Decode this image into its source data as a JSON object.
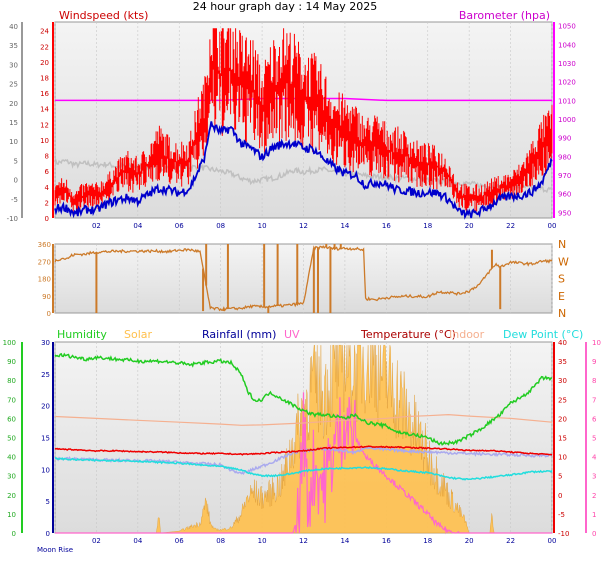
{
  "title": "24 hour graph day : 14 May 2025",
  "x_ticks": [
    "02",
    "04",
    "06",
    "08",
    "10",
    "12",
    "14",
    "16",
    "18",
    "20",
    "22",
    "00"
  ],
  "moon_label": "Moon Rise",
  "colors": {
    "windspeed": "#ff0000",
    "windavg": "#0000cc",
    "barometer": "#ff00ff",
    "gray": "#c0c0c0",
    "direction": "#cc7a29",
    "humidity": "#22cc22",
    "solar": "#ffc04d",
    "rainfall": "#000099",
    "uv": "#ff66cc",
    "temperature": "#ee0000",
    "indoor": "#f5b090",
    "dewpoint": "#22dddd",
    "lilac": "#aaaaee"
  },
  "chart_data": [
    {
      "type": "line",
      "panel": "wind_baro",
      "left_axis_label": "Windspeed (kts)",
      "right_axis_label": "Barometer (hpa)",
      "left_ticks": [
        "24",
        "22",
        "20",
        "18",
        "16",
        "14",
        "12",
        "10",
        "8",
        "6",
        "4",
        "2",
        "0"
      ],
      "left_outer_ticks": [
        "40",
        "35",
        "30",
        "25",
        "20",
        "15",
        "10",
        "5",
        "0",
        "-5",
        "-10"
      ],
      "right_ticks": [
        "1050",
        "1040",
        "1030",
        "1020",
        "1010",
        "1000",
        "990",
        "980",
        "970",
        "960",
        "950"
      ],
      "ylim_kts": [
        0,
        24.6
      ],
      "ylim_hpa": [
        947,
        1052
      ],
      "series": [
        {
          "key": "gust",
          "x": [
            0,
            0.5,
            1,
            1.5,
            2,
            2.5,
            3,
            3.5,
            4,
            4.5,
            5,
            5.5,
            6,
            6.5,
            7,
            7.25,
            7.5,
            8,
            8.5,
            9,
            9.5,
            10,
            10.5,
            11,
            11.5,
            12,
            12.5,
            13,
            13.5,
            14,
            14.5,
            15,
            15.5,
            16,
            16.5,
            17,
            17.5,
            18,
            18.5,
            19,
            19.5,
            20,
            20.5,
            21,
            21.5,
            22,
            22.5,
            23,
            23.5,
            24
          ],
          "y": [
            3.2,
            3.5,
            2.0,
            3.0,
            2.8,
            3.8,
            5.2,
            6.2,
            5.5,
            6.8,
            8.6,
            7.5,
            7.0,
            7.5,
            11.8,
            13.0,
            19.5,
            18.5,
            19.0,
            17.0,
            16.8,
            13.8,
            16.5,
            18.0,
            17.0,
            15.4,
            15.0,
            13.5,
            11.6,
            11.2,
            10.4,
            9.2,
            9.6,
            8.7,
            8.3,
            7.9,
            7.0,
            6.8,
            6.5,
            5.5,
            3.0,
            2.5,
            2.6,
            3.2,
            3.8,
            4.2,
            5.1,
            7.0,
            9.1,
            10.4
          ]
        },
        {
          "key": "avg",
          "x": [
            0,
            0.5,
            1,
            1.5,
            2,
            2.5,
            3,
            3.5,
            4,
            4.5,
            5,
            5.5,
            6,
            6.5,
            7,
            7.25,
            7.5,
            8,
            8.5,
            9,
            9.5,
            10,
            10.5,
            11,
            11.5,
            12,
            12.5,
            13,
            13.5,
            14,
            14.5,
            15,
            15.5,
            16,
            16.5,
            17,
            17.5,
            18,
            18.5,
            19,
            19.5,
            20,
            20.5,
            21,
            21.5,
            22,
            22.5,
            23,
            23.5,
            24
          ],
          "y": [
            1.2,
            1.4,
            0.5,
            1.1,
            1.0,
            1.8,
            2.3,
            2.6,
            2.2,
            3.0,
            3.8,
            3.6,
            3.2,
            3.8,
            6.5,
            8.0,
            12.0,
            11.0,
            11.5,
            9.5,
            8.9,
            7.8,
            9.0,
            9.5,
            9.6,
            9.0,
            8.8,
            7.6,
            6.4,
            5.7,
            5.5,
            4.2,
            4.6,
            4.3,
            3.6,
            3.5,
            3.2,
            3.3,
            3.2,
            2.4,
            0.8,
            0.4,
            0.8,
            1.6,
            2.4,
            2.8,
            2.9,
            3.3,
            4.5,
            7.5
          ]
        },
        {
          "key": "baro",
          "x": [
            0,
            2,
            4,
            6,
            8,
            10,
            12,
            13,
            14,
            16,
            18,
            20,
            22,
            24
          ],
          "y": [
            1010,
            1010,
            1010,
            1010,
            1010,
            1011,
            1011,
            1011,
            1011,
            1010,
            1010,
            1010,
            1010,
            1010
          ]
        },
        {
          "key": "gray",
          "x": [
            0,
            0.5,
            1,
            1.5,
            2,
            2.5,
            3,
            4,
            5,
            6,
            7,
            8,
            8.5,
            9,
            9.5,
            10,
            10.5,
            11,
            11.5,
            12,
            12.5,
            13,
            13.5,
            14,
            14.5,
            15,
            16,
            17,
            18,
            19,
            20,
            21,
            22,
            23,
            24
          ],
          "y": [
            7,
            7.3,
            6.8,
            7.0,
            6.8,
            6.9,
            6.6,
            6.6,
            6.4,
            6.6,
            6.5,
            6.0,
            5.7,
            5.1,
            4.7,
            4.9,
            5.1,
            5.5,
            6.1,
            5.9,
            6.1,
            6.2,
            5.9,
            5.7,
            5.6,
            5.4,
            5.2,
            5.1,
            4.9,
            4.6,
            4.4,
            4.0,
            4.0,
            3.9,
            3.6
          ]
        }
      ]
    },
    {
      "type": "line",
      "panel": "direction",
      "left_ticks": [
        "360",
        "270",
        "180",
        "90",
        "0"
      ],
      "right_ticks": [
        "N",
        "W",
        "S",
        "E",
        "N"
      ],
      "ylim_deg": [
        0,
        360
      ],
      "series": [
        {
          "key": "dir",
          "x": [
            0,
            0.3,
            0.6,
            0.8,
            1,
            1.5,
            2,
            3,
            4,
            5,
            5.5,
            6,
            6.5,
            7,
            7.5,
            8,
            8.5,
            9,
            9.5,
            10,
            11,
            12,
            12.5,
            13,
            13.5,
            14,
            14.5,
            14.9,
            15,
            15.5,
            16,
            17,
            18,
            18.5,
            19,
            19.5,
            20,
            20.5,
            21,
            21.3,
            21.5,
            22,
            22.5,
            23,
            23.5,
            24
          ],
          "y": [
            272,
            285,
            283,
            300,
            305,
            308,
            318,
            322,
            323,
            323,
            320,
            328,
            330,
            320,
            25,
            20,
            22,
            25,
            35,
            32,
            38,
            50,
            338,
            345,
            335,
            338,
            335,
            330,
            75,
            70,
            80,
            88,
            85,
            110,
            108,
            100,
            115,
            150,
            220,
            255,
            240,
            265,
            260,
            255,
            270,
            272
          ]
        }
      ],
      "spikes": [
        {
          "x": 2.0,
          "to": 0
        },
        {
          "x": 7.15,
          "to": 10
        },
        {
          "x": 7.3,
          "to": 360
        },
        {
          "x": 8.15,
          "to": 10
        },
        {
          "x": 8.35,
          "to": 360
        },
        {
          "x": 10.1,
          "to": 360
        },
        {
          "x": 10.3,
          "to": 0
        },
        {
          "x": 10.75,
          "to": 360
        },
        {
          "x": 11.7,
          "to": 360
        },
        {
          "x": 12.5,
          "to": 0
        },
        {
          "x": 12.7,
          "to": 0
        },
        {
          "x": 13.1,
          "to": 360
        },
        {
          "x": 13.3,
          "to": 0
        },
        {
          "x": 13.5,
          "to": 360
        },
        {
          "x": 13.8,
          "to": 360
        },
        {
          "x": 21.1,
          "to": 330
        },
        {
          "x": 21.5,
          "to": 20
        }
      ]
    },
    {
      "type": "area",
      "panel": "multi",
      "legend": [
        "Humidity",
        "Solar",
        "Rainfall (mm)",
        "UV",
        "Temperature (°C)",
        "Indoor",
        "Dew Point (°C)"
      ],
      "humidity_ticks": [
        "100",
        "90",
        "80",
        "70",
        "60",
        "50",
        "40",
        "30",
        "20",
        "10",
        "0"
      ],
      "rain_ticks": [
        "30",
        "25",
        "20",
        "15",
        "10",
        "5",
        "0"
      ],
      "temp_ticks": [
        "40",
        "35",
        "30",
        "25",
        "20",
        "15",
        "10",
        "5",
        "0",
        "-5",
        "-10"
      ],
      "uv_ticks": [
        "10",
        "9",
        "8",
        "7",
        "6",
        "5",
        "4",
        "3",
        "2",
        "1",
        "0"
      ],
      "ylim_humidity": [
        0,
        100
      ],
      "ylim_temperature": [
        -10,
        40
      ],
      "ylim_uv": [
        0,
        10
      ],
      "series": [
        {
          "key": "hum",
          "x": [
            0,
            0.5,
            1,
            1.5,
            2,
            3,
            4,
            5,
            6,
            6.5,
            7,
            8,
            8.5,
            9,
            9.3,
            9.7,
            10,
            10.3,
            10.5,
            11,
            11.5,
            12,
            12.5,
            13,
            13.5,
            14,
            14.5,
            15,
            15.5,
            16,
            16.5,
            17,
            17.5,
            18,
            18.5,
            19,
            19.5,
            20,
            20.5,
            21,
            21.5,
            22,
            22.5,
            23,
            23.5,
            24
          ],
          "y": [
            93,
            93,
            92,
            91,
            92,
            91,
            90,
            90,
            89,
            88,
            89,
            90,
            89,
            83,
            74,
            69,
            70,
            73,
            73,
            70,
            67,
            64,
            62,
            62,
            61,
            60,
            62,
            58,
            57,
            56,
            53,
            52,
            51,
            50,
            47,
            47,
            48,
            51,
            54,
            58,
            62,
            68,
            71,
            75,
            81,
            81
          ]
        },
        {
          "key": "ind",
          "x": [
            0,
            2,
            4,
            6,
            8,
            9,
            10,
            12,
            14,
            16,
            17,
            18,
            19,
            20,
            22,
            24
          ],
          "y": [
            20.5,
            20,
            19.5,
            19,
            18.5,
            18.2,
            18.3,
            18.8,
            19.5,
            20,
            20.5,
            20.7,
            21,
            20.6,
            20,
            19
          ]
        },
        {
          "key": "temp",
          "x": [
            0,
            1,
            2,
            3,
            4,
            5,
            6,
            7,
            8,
            9,
            10,
            11,
            12,
            13,
            14,
            15,
            16,
            17,
            18,
            19,
            20,
            21,
            22,
            23,
            24
          ],
          "y": [
            12,
            11.8,
            11.5,
            11.5,
            11.3,
            11.2,
            11.0,
            10.8,
            10.8,
            10.6,
            10.8,
            11.2,
            11.5,
            12.2,
            12.4,
            12.6,
            12.5,
            12.4,
            12.2,
            12.0,
            11.6,
            11.6,
            11.2,
            10.8,
            10.5
          ]
        },
        {
          "key": "lil",
          "x": [
            0,
            1,
            2,
            3,
            4,
            5,
            6,
            7,
            8,
            8.5,
            9,
            9.5,
            10,
            10.5,
            11,
            11.5,
            12,
            12.5,
            13,
            13.5,
            14,
            14.5,
            15,
            15.5,
            16,
            17,
            18,
            19,
            20,
            21,
            22,
            23,
            24
          ],
          "y": [
            9.5,
            9.4,
            9.2,
            9.0,
            9.0,
            8.8,
            8.5,
            8.2,
            7.8,
            6.5,
            5.5,
            6.5,
            7.5,
            8.6,
            9.8,
            11.0,
            11.5,
            11.8,
            12.0,
            11.8,
            11.5,
            11.0,
            12.5,
            12.0,
            11.8,
            11.5,
            11.2,
            11.0,
            10.8,
            10.6,
            10.5,
            10.3,
            10.3
          ]
        },
        {
          "key": "dew",
          "x": [
            0,
            1,
            2,
            3,
            4,
            5,
            6,
            7,
            8,
            9,
            9.5,
            10,
            10.5,
            11,
            11.5,
            12,
            13,
            14,
            15,
            16,
            17,
            18,
            19,
            20,
            21,
            22,
            23,
            24
          ],
          "y": [
            9.5,
            9.2,
            9.0,
            9.0,
            8.8,
            8.5,
            8.3,
            7.8,
            7.4,
            6.5,
            5.5,
            5.0,
            5.0,
            5.2,
            5.6,
            6.2,
            6.8,
            7.0,
            7.2,
            6.8,
            6.2,
            5.8,
            4.5,
            4.0,
            4.6,
            5.2,
            6.0,
            6.2
          ]
        },
        {
          "key": "solar",
          "x": [
            0,
            4.9,
            5.0,
            5.1,
            6.0,
            7.0,
            7.3,
            7.5,
            7.7,
            8.0,
            8.5,
            9.0,
            9.3,
            9.6,
            10.0,
            10.5,
            11.0,
            11.5,
            12.0,
            12.5,
            13.0,
            13.5,
            14.0,
            14.5,
            15.0,
            15.5,
            16.0,
            16.5,
            17.0,
            17.5,
            18.0,
            18.5,
            19.0,
            19.5,
            19.8,
            20.0,
            21.0,
            21.1,
            21.2,
            24
          ],
          "y": [
            0,
            0,
            3.0,
            0,
            0.3,
            1.5,
            5.0,
            1.5,
            0.6,
            0.5,
            0.8,
            3.0,
            5.5,
            6.5,
            5.5,
            6.5,
            8.2,
            14.0,
            19.0,
            24.0,
            22.0,
            26.5,
            29.0,
            26.0,
            28.5,
            27.0,
            24.5,
            22.0,
            18.5,
            15.5,
            12.0,
            9.0,
            6.0,
            3.5,
            2.0,
            0,
            0,
            3.0,
            0,
            0
          ]
        },
        {
          "key": "uv",
          "x": [
            0,
            11.5,
            11.8,
            12.0,
            12.2,
            12.5,
            13.0,
            13.5,
            14.0,
            14.5,
            15.0,
            15.5,
            16.0,
            16.5,
            17.0,
            17.5,
            18.0,
            18.5,
            19.0,
            19.5,
            24
          ],
          "y": [
            0,
            0,
            1.0,
            6.0,
            1.5,
            3.5,
            2.5,
            4.5,
            6.0,
            5.0,
            4.0,
            3.5,
            3.0,
            2.5,
            2.0,
            1.5,
            1.0,
            0.4,
            0.1,
            0,
            0
          ]
        }
      ]
    }
  ]
}
